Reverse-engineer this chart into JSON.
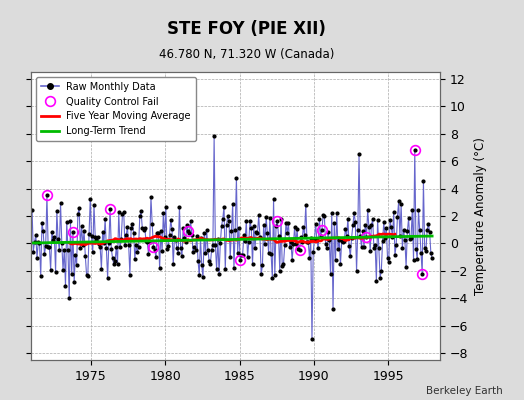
{
  "title": "STE FOY (PIE XII)",
  "subtitle": "46.780 N, 71.320 W (Canada)",
  "ylabel": "Temperature Anomaly (°C)",
  "credit": "Berkeley Earth",
  "ylim": [
    -8.5,
    12.5
  ],
  "xlim": [
    1971.0,
    1998.5
  ],
  "yticks": [
    -8,
    -6,
    -4,
    -2,
    0,
    2,
    4,
    6,
    8,
    10,
    12
  ],
  "xticks": [
    1975,
    1980,
    1985,
    1990,
    1995
  ],
  "bg_color": "#dcdcdc",
  "plot_bg_color": "#ffffff",
  "raw_color": "#6666cc",
  "dot_color": "#000000",
  "qc_color": "#ff00ff",
  "mavg_color": "#ff0000",
  "trend_color": "#00bb00",
  "figsize": [
    5.24,
    4.0
  ],
  "dpi": 100
}
